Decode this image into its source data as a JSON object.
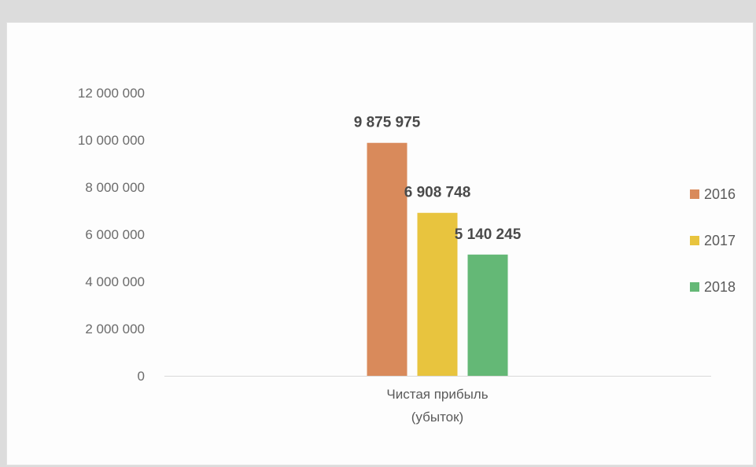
{
  "chart_data": {
    "type": "bar",
    "categories": [
      "Чистая прибыль (убыток)"
    ],
    "category_lines": [
      [
        "Чистая прибыль",
        "(убыток)"
      ]
    ],
    "series": [
      {
        "name": "2016",
        "values": [
          9875975
        ],
        "color": "#d98a5b"
      },
      {
        "name": "2017",
        "values": [
          6908748
        ],
        "color": "#e8c43e"
      },
      {
        "name": "2018",
        "values": [
          5140245
        ],
        "color": "#64b876"
      }
    ],
    "data_labels": [
      "9 875 975",
      "6 908 748",
      "5 140 245"
    ],
    "yticks": [
      0,
      2000000,
      4000000,
      6000000,
      8000000,
      10000000,
      12000000
    ],
    "ytick_labels": [
      "0",
      "2 000 000",
      "4 000 000",
      "6 000 000",
      "8 000 000",
      "10 000 000",
      "12 000 000"
    ],
    "ylim": [
      0,
      12000000
    ],
    "title": "",
    "xlabel": "",
    "ylabel": "",
    "grid": false,
    "legend_position": "right"
  }
}
